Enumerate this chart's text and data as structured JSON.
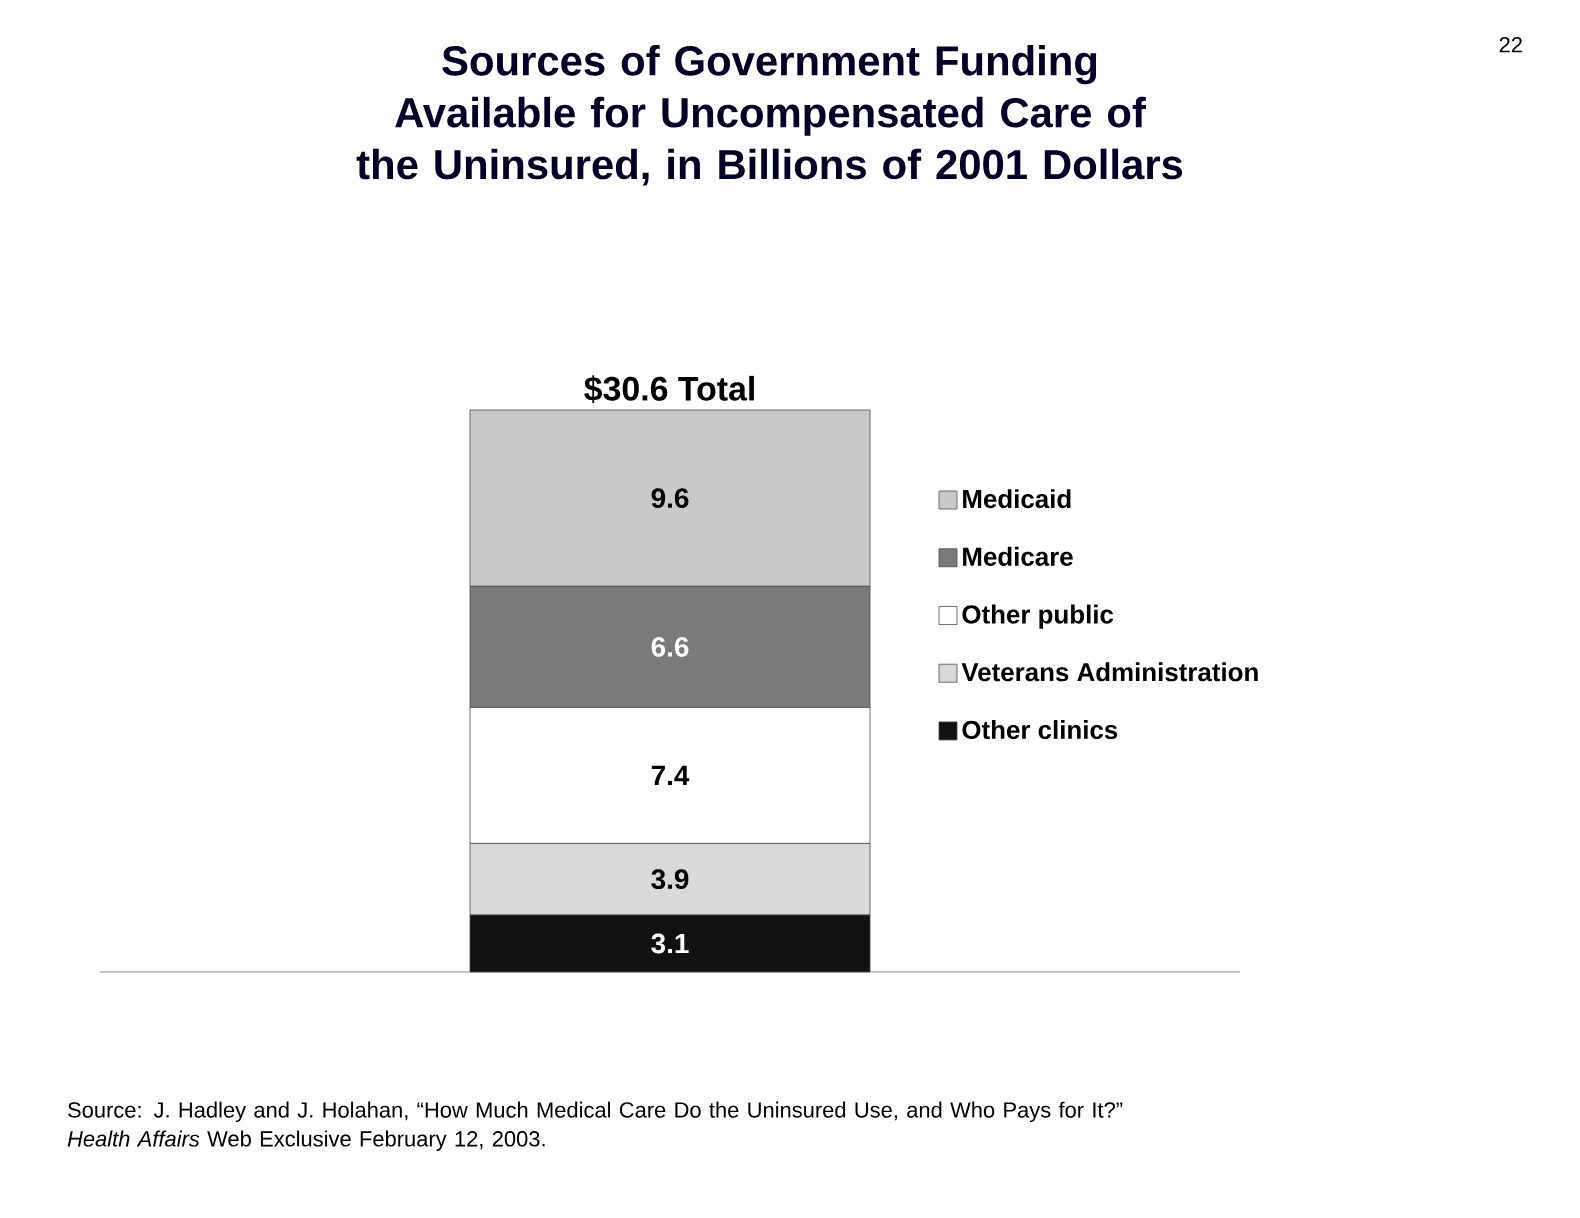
{
  "chart_data": {
    "type": "bar",
    "stacked": true,
    "title": "Sources of Government Funding Available for Uncompensated Care of the Uninsured, in Billions of 2001 Dollars",
    "categories": [
      null
    ],
    "series": [
      {
        "name": "Other clinics",
        "color": "#111111",
        "values": [
          3.1
        ]
      },
      {
        "name": "Veterans Administration",
        "color": "#d9d9d9",
        "values": [
          3.9
        ]
      },
      {
        "name": "Other public",
        "color": "#ffffff",
        "values": [
          7.4
        ]
      },
      {
        "name": "Medicare",
        "color": "#7a7a7a",
        "values": [
          6.6
        ]
      },
      {
        "name": "Medicaid",
        "color": "#c9c9c9",
        "values": [
          9.6
        ]
      }
    ],
    "data_labels": true,
    "totals": [
      "$30.6  Total"
    ],
    "legend": "right",
    "annotations": [
      "22",
      "Source: J. Hadley and J. Holahan, “How Much Medical Care Do the Uninsured Use, and Who Pays  for It?” *Health Affairs* Web Exclusive February 12, 2003."
    ]
  }
}
